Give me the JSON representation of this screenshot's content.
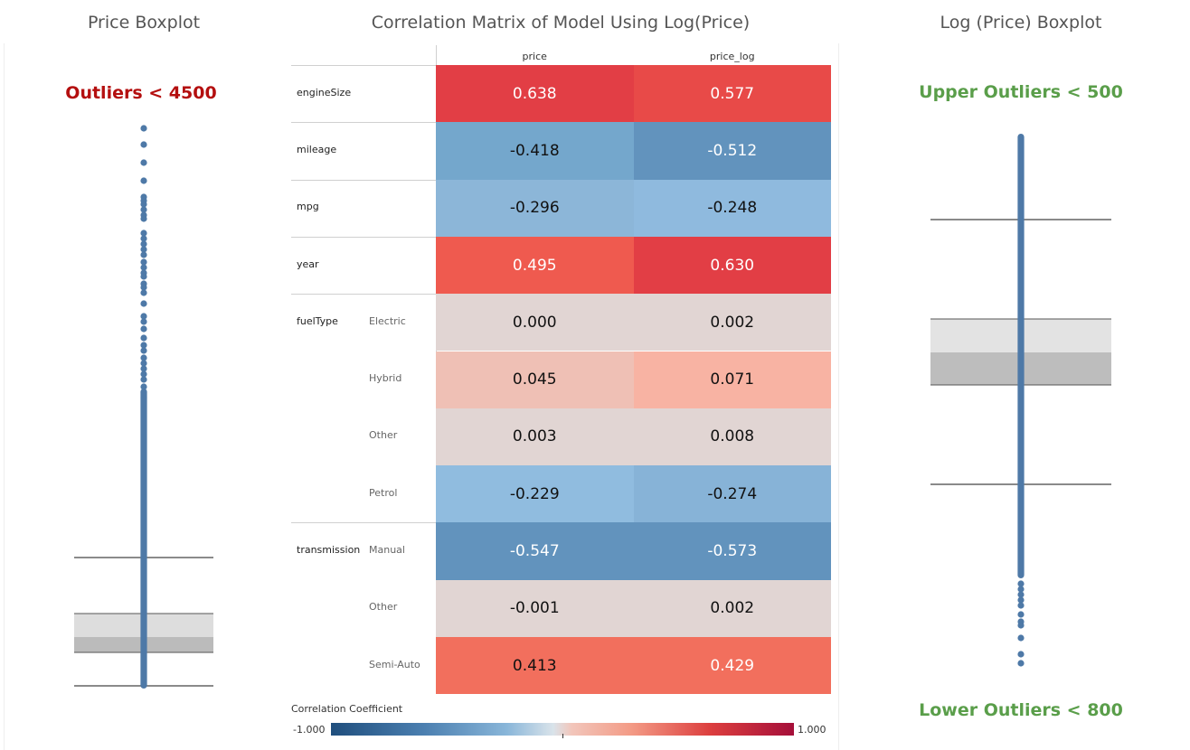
{
  "left_panel": {
    "title": "Price Boxplot",
    "outlier_label": "Outliers < 4500",
    "outlier_color": "#b40f0f"
  },
  "center_panel": {
    "title": "Correlation Matrix of Model Using Log(Price)"
  },
  "right_panel": {
    "title": "Log (Price) Boxplot",
    "upper_label": "Upper Outliers < 500",
    "lower_label": "Lower Outliers < 800",
    "label_color": "#5a9e4a"
  },
  "chart_data": [
    {
      "type": "heatmap",
      "title": "Correlation Matrix of Model Using Log(Price)",
      "columns": [
        "price",
        "price_log"
      ],
      "rows": [
        {
          "group": "engineSize",
          "sub": "",
          "values": [
            0.638,
            0.577
          ],
          "labels": [
            "0.638",
            "0.577"
          ]
        },
        {
          "group": "mileage",
          "sub": "",
          "values": [
            -0.418,
            -0.512
          ],
          "labels": [
            "-0.418",
            "-0.512"
          ]
        },
        {
          "group": "mpg",
          "sub": "",
          "values": [
            -0.296,
            -0.248
          ],
          "labels": [
            "-0.296",
            "-0.248"
          ]
        },
        {
          "group": "year",
          "sub": "",
          "values": [
            0.495,
            0.63
          ],
          "labels": [
            "0.495",
            "0.630"
          ]
        },
        {
          "group": "fuelType",
          "sub": "Electric",
          "values": [
            0.0,
            0.002
          ],
          "labels": [
            "0.000",
            "0.002"
          ]
        },
        {
          "group": "",
          "sub": "Hybrid",
          "values": [
            0.045,
            0.071
          ],
          "labels": [
            "0.045",
            "0.071"
          ]
        },
        {
          "group": "",
          "sub": "Other",
          "values": [
            0.003,
            0.008
          ],
          "labels": [
            "0.003",
            "0.008"
          ]
        },
        {
          "group": "",
          "sub": "Petrol",
          "values": [
            -0.229,
            -0.274
          ],
          "labels": [
            "-0.229",
            "-0.274"
          ]
        },
        {
          "group": "transmission",
          "sub": "Manual",
          "values": [
            -0.547,
            -0.573
          ],
          "labels": [
            "-0.547",
            "-0.573"
          ]
        },
        {
          "group": "",
          "sub": "Other",
          "values": [
            -0.001,
            0.002
          ],
          "labels": [
            "-0.001",
            "0.002"
          ]
        },
        {
          "group": "",
          "sub": "Semi-Auto",
          "values": [
            0.413,
            0.429
          ],
          "labels": [
            "0.413",
            "0.429"
          ]
        }
      ],
      "cell_colors": [
        [
          "#e23e45",
          "#e84a48"
        ],
        [
          "#74a7cc",
          "#6293bd"
        ],
        [
          "#8cb6d8",
          "#8fbade"
        ],
        [
          "#ef5a4f",
          "#e23e45"
        ],
        [
          "#e1d5d3",
          "#e1d5d3"
        ],
        [
          "#efc0b5",
          "#f8b3a3"
        ],
        [
          "#e1d5d3",
          "#e1d5d3"
        ],
        [
          "#90bcdf",
          "#87b3d7"
        ],
        [
          "#6293bd",
          "#6293bd"
        ],
        [
          "#e1d5d3",
          "#e1d5d3"
        ],
        [
          "#f26f5d",
          "#f26f5d"
        ]
      ],
      "light_text_values": [
        "0.638",
        "0.577",
        "-0.512",
        "0.495",
        "0.630",
        "-0.547",
        "-0.573",
        "0.429"
      ],
      "legend": {
        "title": "Correlation Coefficient",
        "min_label": "-1.000",
        "max_label": "1.000",
        "range": [
          -1.0,
          1.0
        ]
      }
    }
  ]
}
